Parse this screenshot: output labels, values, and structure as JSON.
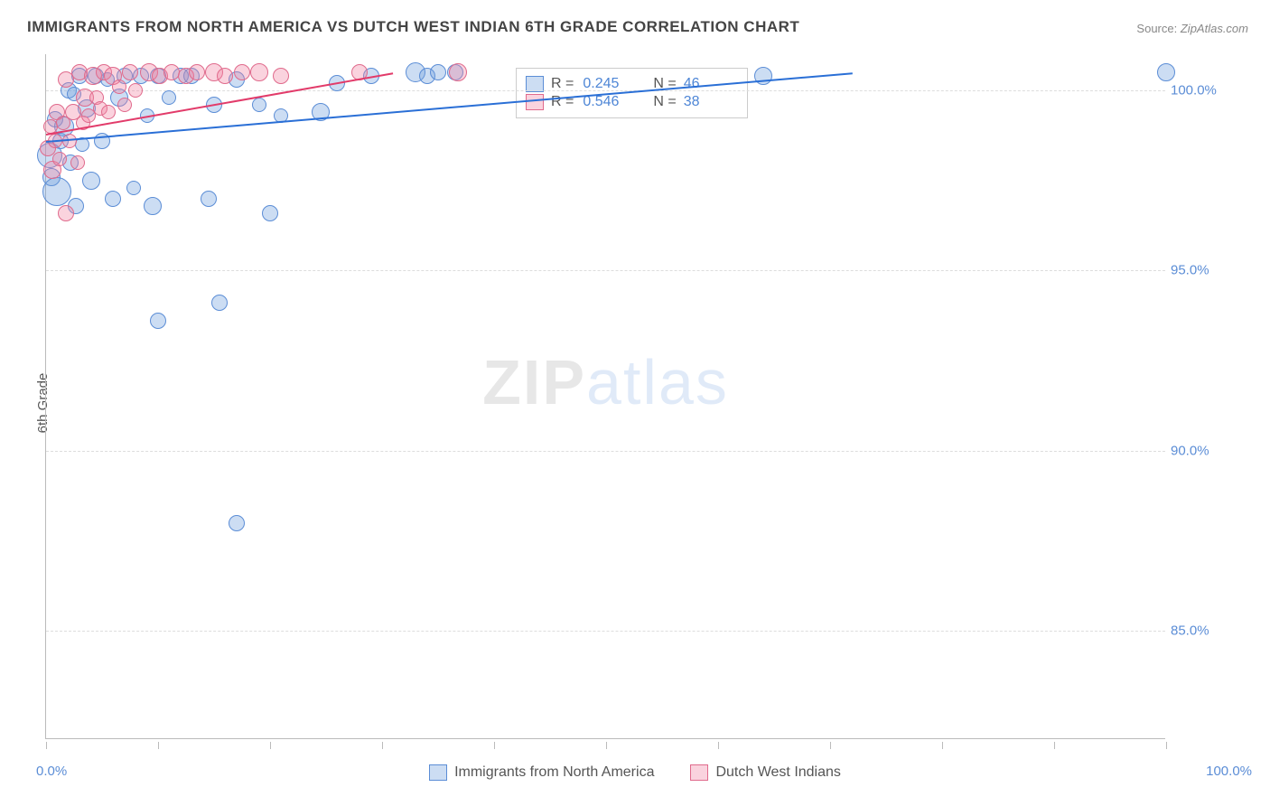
{
  "title": "IMMIGRANTS FROM NORTH AMERICA VS DUTCH WEST INDIAN 6TH GRADE CORRELATION CHART",
  "source_label": "Source:",
  "source_value": "ZipAtlas.com",
  "ylabel": "6th Grade",
  "watermark_a": "ZIP",
  "watermark_b": "atlas",
  "chart": {
    "type": "scatter",
    "xlim": [
      0,
      100
    ],
    "ylim": [
      82,
      101
    ],
    "x_axis_format": "percent",
    "y_axis_format": "percent",
    "x_start_label": "0.0%",
    "x_end_label": "100.0%",
    "grid_color": "#dddddd",
    "axis_color": "#bbbbbb",
    "background_color": "#ffffff",
    "y_ticks": [
      {
        "v": 85,
        "label": "85.0%"
      },
      {
        "v": 90,
        "label": "90.0%"
      },
      {
        "v": 95,
        "label": "95.0%"
      },
      {
        "v": 100,
        "label": "100.0%"
      }
    ],
    "x_tick_positions": [
      0,
      10,
      20,
      30,
      40,
      50,
      60,
      70,
      80,
      90,
      100
    ],
    "series": [
      {
        "id": "blue",
        "name": "Immigrants from North America",
        "fill": "rgba(109,158,222,0.35)",
        "stroke": "#5b8dd6",
        "line_color": "#2a6fd6",
        "trend": {
          "x1": 0,
          "y1": 98.6,
          "x2": 72,
          "y2": 100.5
        },
        "R": "0.245",
        "N": "46",
        "points": [
          {
            "x": 0.3,
            "y": 98.2,
            "r": 14
          },
          {
            "x": 0.5,
            "y": 97.6,
            "r": 10
          },
          {
            "x": 0.8,
            "y": 99.2,
            "r": 9
          },
          {
            "x": 1.0,
            "y": 97.2,
            "r": 16
          },
          {
            "x": 1.3,
            "y": 98.6,
            "r": 9
          },
          {
            "x": 1.6,
            "y": 99.0,
            "r": 11
          },
          {
            "x": 2.0,
            "y": 100.0,
            "r": 9
          },
          {
            "x": 2.2,
            "y": 98.0,
            "r": 9
          },
          {
            "x": 2.5,
            "y": 99.9,
            "r": 8
          },
          {
            "x": 2.7,
            "y": 96.8,
            "r": 9
          },
          {
            "x": 3.0,
            "y": 100.4,
            "r": 9
          },
          {
            "x": 3.2,
            "y": 98.5,
            "r": 8
          },
          {
            "x": 3.6,
            "y": 99.5,
            "r": 10
          },
          {
            "x": 4.0,
            "y": 97.5,
            "r": 10
          },
          {
            "x": 4.4,
            "y": 100.4,
            "r": 9
          },
          {
            "x": 5.0,
            "y": 98.6,
            "r": 9
          },
          {
            "x": 5.5,
            "y": 100.3,
            "r": 8
          },
          {
            "x": 6.0,
            "y": 97.0,
            "r": 9
          },
          {
            "x": 6.5,
            "y": 99.8,
            "r": 10
          },
          {
            "x": 7.0,
            "y": 100.4,
            "r": 9
          },
          {
            "x": 7.8,
            "y": 97.3,
            "r": 8
          },
          {
            "x": 8.5,
            "y": 100.4,
            "r": 9
          },
          {
            "x": 9.0,
            "y": 99.3,
            "r": 8
          },
          {
            "x": 9.5,
            "y": 96.8,
            "r": 10
          },
          {
            "x": 10.0,
            "y": 100.4,
            "r": 9
          },
          {
            "x": 10.0,
            "y": 93.6,
            "r": 9
          },
          {
            "x": 11.0,
            "y": 99.8,
            "r": 8
          },
          {
            "x": 12.0,
            "y": 100.4,
            "r": 9
          },
          {
            "x": 13.0,
            "y": 100.4,
            "r": 9
          },
          {
            "x": 14.5,
            "y": 97.0,
            "r": 9
          },
          {
            "x": 15.0,
            "y": 99.6,
            "r": 9
          },
          {
            "x": 15.5,
            "y": 94.1,
            "r": 9
          },
          {
            "x": 17.0,
            "y": 100.3,
            "r": 9
          },
          {
            "x": 17.0,
            "y": 88.0,
            "r": 9
          },
          {
            "x": 19.0,
            "y": 99.6,
            "r": 8
          },
          {
            "x": 20.0,
            "y": 96.6,
            "r": 9
          },
          {
            "x": 21.0,
            "y": 99.3,
            "r": 8
          },
          {
            "x": 24.5,
            "y": 99.4,
            "r": 10
          },
          {
            "x": 26.0,
            "y": 100.2,
            "r": 9
          },
          {
            "x": 29.0,
            "y": 100.4,
            "r": 9
          },
          {
            "x": 33.0,
            "y": 100.5,
            "r": 11
          },
          {
            "x": 34.0,
            "y": 100.4,
            "r": 9
          },
          {
            "x": 35.0,
            "y": 100.5,
            "r": 9
          },
          {
            "x": 36.5,
            "y": 100.5,
            "r": 9
          },
          {
            "x": 64.0,
            "y": 100.4,
            "r": 10
          },
          {
            "x": 100.0,
            "y": 100.5,
            "r": 10
          }
        ]
      },
      {
        "id": "pink",
        "name": "Dutch West Indians",
        "fill": "rgba(240,130,160,0.35)",
        "stroke": "#e06a8c",
        "line_color": "#e23b6a",
        "trend": {
          "x1": 0,
          "y1": 98.8,
          "x2": 31,
          "y2": 100.5
        },
        "R": "0.546",
        "N": "38",
        "points": [
          {
            "x": 0.2,
            "y": 98.4,
            "r": 9
          },
          {
            "x": 0.4,
            "y": 99.0,
            "r": 8
          },
          {
            "x": 0.6,
            "y": 97.8,
            "r": 10
          },
          {
            "x": 0.8,
            "y": 98.6,
            "r": 8
          },
          {
            "x": 1.0,
            "y": 99.4,
            "r": 9
          },
          {
            "x": 1.2,
            "y": 98.1,
            "r": 8
          },
          {
            "x": 1.5,
            "y": 99.1,
            "r": 8
          },
          {
            "x": 1.8,
            "y": 100.3,
            "r": 9
          },
          {
            "x": 1.8,
            "y": 96.6,
            "r": 9
          },
          {
            "x": 2.1,
            "y": 98.6,
            "r": 8
          },
          {
            "x": 2.4,
            "y": 99.4,
            "r": 9
          },
          {
            "x": 2.8,
            "y": 98.0,
            "r": 8
          },
          {
            "x": 3.0,
            "y": 100.5,
            "r": 9
          },
          {
            "x": 3.3,
            "y": 99.1,
            "r": 8
          },
          {
            "x": 3.5,
            "y": 99.8,
            "r": 10
          },
          {
            "x": 3.8,
            "y": 99.3,
            "r": 8
          },
          {
            "x": 4.2,
            "y": 100.4,
            "r": 10
          },
          {
            "x": 4.5,
            "y": 99.8,
            "r": 8
          },
          {
            "x": 4.8,
            "y": 99.5,
            "r": 8
          },
          {
            "x": 5.2,
            "y": 100.5,
            "r": 9
          },
          {
            "x": 5.6,
            "y": 99.4,
            "r": 8
          },
          {
            "x": 6.0,
            "y": 100.4,
            "r": 10
          },
          {
            "x": 6.5,
            "y": 100.1,
            "r": 8
          },
          {
            "x": 7.0,
            "y": 99.6,
            "r": 8
          },
          {
            "x": 7.5,
            "y": 100.5,
            "r": 9
          },
          {
            "x": 8.0,
            "y": 100.0,
            "r": 8
          },
          {
            "x": 9.2,
            "y": 100.5,
            "r": 10
          },
          {
            "x": 10.2,
            "y": 100.4,
            "r": 9
          },
          {
            "x": 11.2,
            "y": 100.5,
            "r": 9
          },
          {
            "x": 12.5,
            "y": 100.4,
            "r": 9
          },
          {
            "x": 13.5,
            "y": 100.5,
            "r": 9
          },
          {
            "x": 15.0,
            "y": 100.5,
            "r": 10
          },
          {
            "x": 16.0,
            "y": 100.4,
            "r": 9
          },
          {
            "x": 17.5,
            "y": 100.5,
            "r": 9
          },
          {
            "x": 19.0,
            "y": 100.5,
            "r": 10
          },
          {
            "x": 21.0,
            "y": 100.4,
            "r": 9
          },
          {
            "x": 28.0,
            "y": 100.5,
            "r": 9
          },
          {
            "x": 36.8,
            "y": 100.5,
            "r": 10
          }
        ]
      }
    ]
  },
  "legend_stats": [
    {
      "series": "blue",
      "R_label": "R =",
      "N_label": "N ="
    },
    {
      "series": "pink",
      "R_label": "R =",
      "N_label": "N ="
    }
  ],
  "bottom_legend": [
    {
      "series": "blue"
    },
    {
      "series": "pink"
    }
  ]
}
